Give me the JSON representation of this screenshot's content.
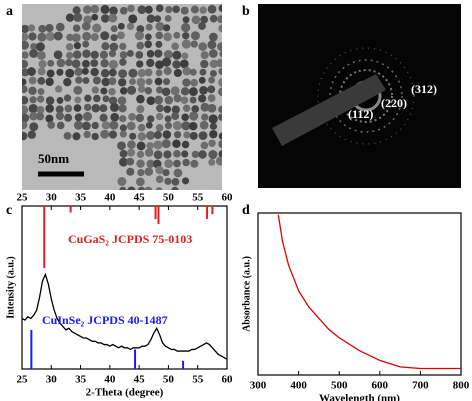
{
  "panels": {
    "a": {
      "label": "a",
      "scale_bar": "50nm"
    },
    "b": {
      "label": "b",
      "rings": [
        "(112)",
        "(220)",
        "(312)"
      ]
    }
  },
  "chart_data": [
    {
      "type": "line",
      "label": "c",
      "xlabel": "2-Theta (degree)",
      "ylabel": "Intensity (a.u.)",
      "xlim": [
        25,
        60
      ],
      "xticks": [
        25,
        30,
        35,
        40,
        45,
        50,
        55,
        60
      ],
      "ylim": [
        0,
        100
      ],
      "top_axis": true,
      "series": [
        {
          "color": "#000000",
          "x": [
            25,
            25.5,
            26,
            26.5,
            27,
            27.5,
            28,
            28.5,
            29,
            29.5,
            30,
            30.5,
            31,
            31.5,
            32,
            32.5,
            33,
            33.5,
            34,
            34.5,
            35,
            35.5,
            36,
            36.5,
            37,
            37.5,
            38,
            38.5,
            39,
            39.5,
            40,
            40.5,
            41,
            41.5,
            42,
            42.5,
            43,
            43.5,
            44,
            44.5,
            45,
            45.5,
            46,
            46.5,
            47,
            47.5,
            48,
            48.5,
            49,
            49.5,
            50,
            50.5,
            51,
            51.5,
            52,
            52.5,
            53,
            53.5,
            54,
            54.5,
            55,
            55.5,
            56,
            56.5,
            57,
            57.5,
            58,
            58.5,
            59,
            59.5,
            60
          ],
          "values": [
            31,
            30,
            32,
            31,
            33,
            36,
            44,
            54,
            58,
            52,
            43,
            36,
            31,
            28,
            26,
            24,
            25,
            23,
            22,
            21,
            20,
            19,
            19,
            18,
            17,
            17,
            16,
            16,
            15,
            15,
            14,
            15,
            14,
            13,
            14,
            13,
            13,
            12,
            13,
            13,
            13,
            14,
            14,
            15,
            18,
            22,
            25,
            21,
            16,
            14,
            13,
            12,
            12,
            11,
            11,
            11,
            11,
            11,
            12,
            12,
            13,
            14,
            15,
            16,
            15,
            13,
            11,
            9,
            8,
            7,
            6
          ]
        },
        {
          "style": "sticks",
          "anchor": "top",
          "label": "CuGaS₂ JCPDS 75-0103",
          "color": "#e02020",
          "x": [
            28.8,
            33.3,
            47.8,
            48.3,
            56.6,
            57.5
          ],
          "values": [
            38,
            4,
            8,
            11,
            8,
            5
          ]
        },
        {
          "style": "sticks",
          "anchor": "bottom",
          "label": "CuInSe₂ JCPDS 40-1487",
          "color": "#1a1aff",
          "x": [
            26.6,
            44.3,
            52.5
          ],
          "values": [
            24,
            12,
            5
          ]
        }
      ]
    },
    {
      "type": "line",
      "label": "d",
      "xlabel": "Wavelength (nm)",
      "ylabel": "Absorbance (a.u.)",
      "xlim": [
        300,
        800
      ],
      "xticks": [
        300,
        400,
        500,
        600,
        700,
        800
      ],
      "ylim": [
        0,
        100
      ],
      "series": [
        {
          "color": "#e00000",
          "x": [
            350,
            360,
            375,
            400,
            425,
            450,
            475,
            500,
            550,
            600,
            650,
            700,
            750,
            800
          ],
          "values": [
            99,
            83,
            68,
            52,
            42,
            35,
            28,
            23,
            15,
            9,
            5,
            4,
            4,
            4
          ]
        }
      ]
    }
  ]
}
